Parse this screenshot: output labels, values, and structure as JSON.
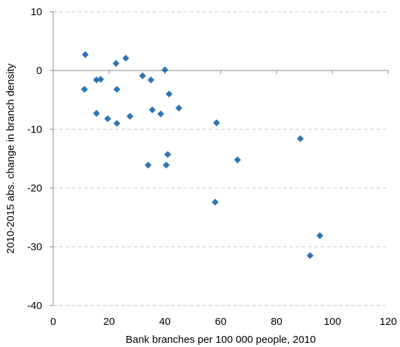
{
  "chart_data": {
    "type": "scatter",
    "title": "",
    "xlabel": "Bank branches per 100 000 people, 2010",
    "ylabel": "2010-2015 abs. change in branch density",
    "xlim": [
      0,
      120
    ],
    "ylim": [
      -40,
      10
    ],
    "xticks": [
      0,
      20,
      40,
      60,
      80,
      100,
      120
    ],
    "yticks": [
      -40,
      -30,
      -20,
      -10,
      0,
      10
    ],
    "grid": "horizontal dashed",
    "legend": "none",
    "marker": "diamond",
    "colors": {
      "marker": "#2E75B6",
      "grid": "#C0C0C0",
      "axis": "#868686",
      "background": "#FFFFFF"
    },
    "series": [
      {
        "points": [
          [
            11.5,
            2.7
          ],
          [
            11.2,
            -3.2
          ],
          [
            15.5,
            -1.6
          ],
          [
            17.0,
            -1.5
          ],
          [
            15.5,
            -7.3
          ],
          [
            19.5,
            -8.2
          ],
          [
            22.5,
            1.2
          ],
          [
            22.8,
            -3.2
          ],
          [
            22.8,
            -9.0
          ],
          [
            26.0,
            2.1
          ],
          [
            27.5,
            -7.8
          ],
          [
            32.0,
            -0.9
          ],
          [
            35.0,
            -1.6
          ],
          [
            35.5,
            -6.7
          ],
          [
            38.5,
            -7.4
          ],
          [
            40.0,
            0.1
          ],
          [
            41.5,
            -4.0
          ],
          [
            45.0,
            -6.4
          ],
          [
            34.0,
            -16.1
          ],
          [
            41.0,
            -14.3
          ],
          [
            40.5,
            -16.1
          ],
          [
            58.5,
            -8.9
          ],
          [
            58.0,
            -22.4
          ],
          [
            66.0,
            -15.2
          ],
          [
            88.5,
            -11.6
          ],
          [
            92.0,
            -31.5
          ],
          [
            95.5,
            -28.1
          ]
        ]
      }
    ]
  }
}
